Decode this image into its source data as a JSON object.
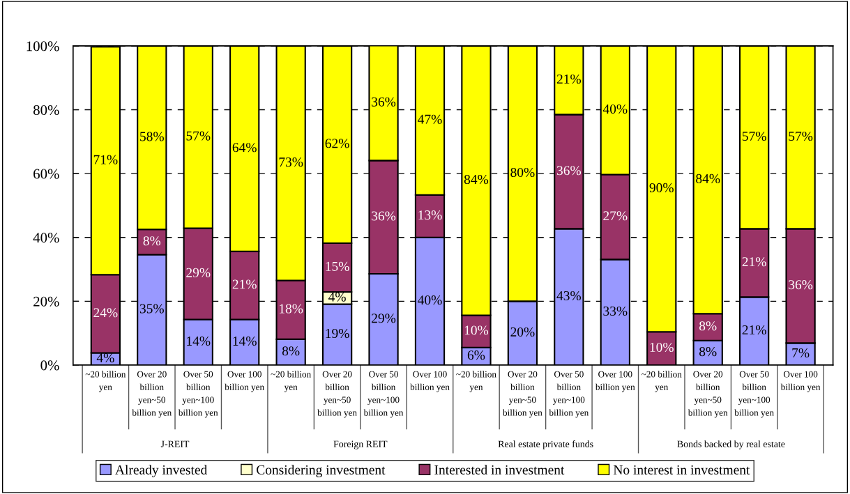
{
  "chart_data": {
    "type": "bar",
    "stacked": true,
    "categories": [
      "~20 billion\nyen",
      "Over 20\nbillion\nyen~50\nbillion yen",
      "Over 50\nbillion\nyen~100\nbillion yen",
      "Over 100\nbillion yen",
      "~20 billion\nyen",
      "Over 20\nbillion\nyen~50\nbillion yen",
      "Over 50\nbillion\nyen~100\nbillion yen",
      "Over 100\nbillion yen",
      "~20 billion\nyen",
      "Over 20\nbillion\nyen~50\nbillion yen",
      "Over 50\nbillion\nyen~100\nbillion yen",
      "Over 100\nbillion yen",
      "~20 billion\nyen",
      "Over 20\nbillion\nyen~50\nbillion yen",
      "Over 50\nbillion\nyen~100\nbillion yen",
      "Over 100\nbillion yen"
    ],
    "annotations": [
      "J-REIT",
      "Foreign REIT",
      "Real estate private funds",
      "Bonds backed by real estate"
    ],
    "series": [
      {
        "name": "Already invested",
        "color": "#9999ff",
        "values": [
          3.8,
          34.6,
          14.3,
          14.3,
          8.1,
          19.1,
          28.6,
          40.0,
          5.5,
          20.0,
          42.7,
          33.1,
          null,
          7.7,
          21.3,
          6.9
        ],
        "value_labels": [
          "4%",
          "35%",
          "14%",
          "14%",
          "8%",
          "19%",
          "29%",
          "40%",
          "6%",
          "20%",
          "43%",
          "33%",
          null,
          "8%",
          "21%",
          "7%"
        ]
      },
      {
        "name": "Considering investment",
        "color": "#ffffcc",
        "values": [
          null,
          null,
          null,
          null,
          null,
          3.8,
          null,
          null,
          null,
          null,
          null,
          null,
          null,
          null,
          null,
          null
        ],
        "value_labels": [
          null,
          null,
          null,
          null,
          null,
          "4%",
          null,
          null,
          null,
          null,
          null,
          null,
          null,
          null,
          null,
          null
        ]
      },
      {
        "name": "Interested in investment",
        "color": "#993366",
        "values": [
          24.5,
          7.9,
          28.6,
          21.3,
          18.4,
          15.3,
          35.5,
          13.3,
          10.1,
          null,
          35.8,
          26.6,
          10.4,
          8.4,
          21.4,
          35.8
        ],
        "value_labels": [
          "24%",
          "8%",
          "29%",
          "21%",
          "18%",
          "15%",
          "36%",
          "13%",
          "10%",
          null,
          "36%",
          "27%",
          "10%",
          "8%",
          "21%",
          "36%"
        ]
      },
      {
        "name": "No interest in investment",
        "color": "#ffff00",
        "values": [
          71.4,
          57.5,
          57.1,
          64.4,
          73.5,
          61.8,
          36.0,
          46.7,
          84.4,
          80.0,
          21.5,
          40.3,
          89.6,
          83.9,
          57.3,
          57.3
        ],
        "value_labels": [
          "71%",
          "58%",
          "57%",
          "64%",
          "73%",
          "62%",
          "36%",
          "47%",
          "84%",
          "80%",
          "21%",
          "40%",
          "90%",
          "84%",
          "57%",
          "57%"
        ]
      }
    ],
    "ylim": [
      0,
      100
    ],
    "yticks": [
      {
        "value": 0,
        "label": "0%"
      },
      {
        "value": 20,
        "label": "20%"
      },
      {
        "value": 40,
        "label": "40%"
      },
      {
        "value": 60,
        "label": "60%"
      },
      {
        "value": 80,
        "label": "80%"
      },
      {
        "value": 100,
        "label": "100%"
      }
    ],
    "grid": "y",
    "line_style": "dashed",
    "legend": "bottom"
  }
}
